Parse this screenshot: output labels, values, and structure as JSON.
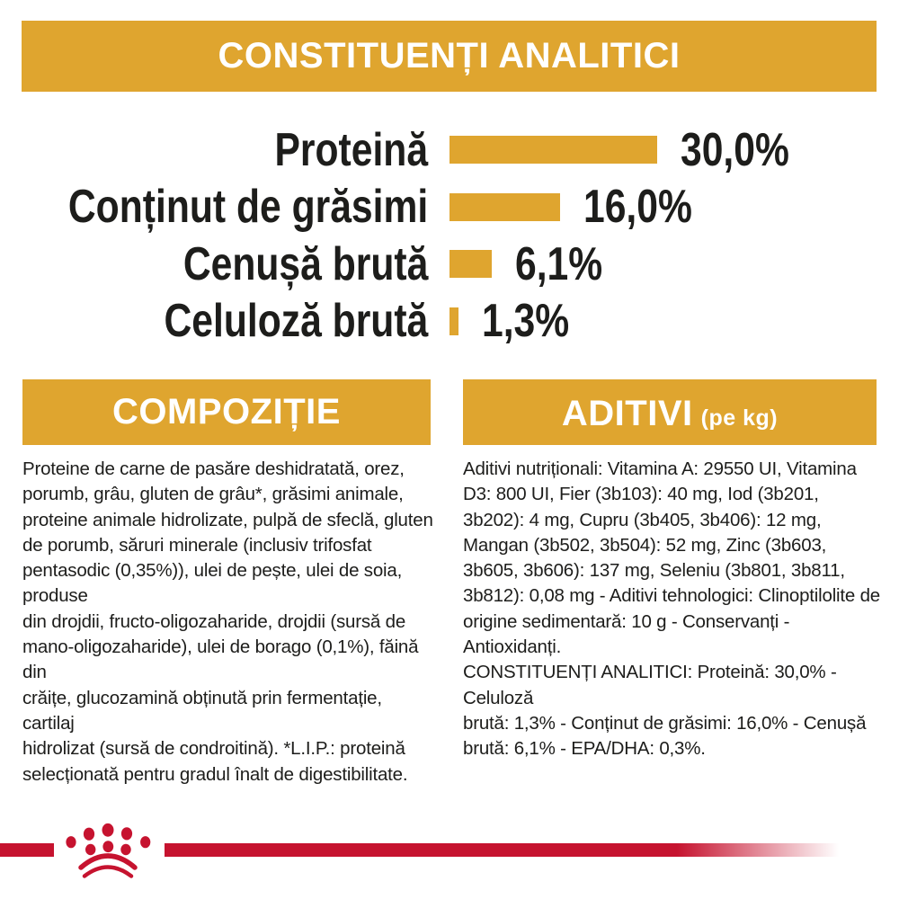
{
  "title_banner": "CONSTITUENȚI ANALITICI",
  "chart_data": {
    "type": "bar",
    "orientation": "horizontal",
    "title": "CONSTITUENȚI ANALITICI",
    "categories": [
      "Proteină",
      "Conținut de grăsimi",
      "Cenușă brută",
      "Celuloză brută"
    ],
    "values": [
      30.0,
      16.0,
      6.1,
      1.3
    ],
    "value_labels": [
      "30,0%",
      "16,0%",
      "6,1%",
      "1,3%"
    ],
    "unit": "%",
    "xlim": [
      0,
      30
    ],
    "grid": "off",
    "legend": "none",
    "bar_color": "#dfa52f"
  },
  "composition": {
    "heading": "COMPOZIȚIE",
    "lines": [
      "Proteine de carne de pasăre deshidratată, orez,",
      "porumb, grâu, gluten de grâu*, grăsimi animale,",
      "proteine animale hidrolizate, pulpă de sfeclă, gluten",
      "de porumb, săruri minerale (inclusiv trifosfat",
      "pentasodic (0,35%)), ulei de pește, ulei de soia, produse",
      "din drojdii, fructo-oligozaharide, drojdii (sursă de",
      "mano-oligozaharide), ulei de borago (0,1%), făină din",
      "crăițe, glucozamină obținută prin fermentație, cartilaj",
      "hidrolizat (sursă de condroitină). *L.I.P.: proteină",
      "selecționată pentru gradul înalt de digestibilitate."
    ]
  },
  "additives": {
    "heading": "ADITIVI",
    "heading_suffix": "(pe kg)",
    "lines": [
      "Aditivi nutriționali: Vitamina A: 29550 UI, Vitamina",
      "D3: 800 UI, Fier (3b103): 40 mg, Iod (3b201,",
      "3b202): 4 mg, Cupru (3b405, 3b406): 12 mg,",
      "Mangan (3b502, 3b504): 52 mg, Zinc (3b603,",
      "3b605, 3b606): 137 mg, Seleniu (3b801, 3b811,",
      "3b812): 0,08 mg - Aditivi tehnologici: Clinoptilolite de",
      "origine sedimentară: 10 g - Conservanți - Antioxidanți.",
      "CONSTITUENȚI ANALITICI: Proteină: 30,0% - Celuloză",
      "brută: 1,3% - Conținut de grăsimi: 16,0% - Cenușă",
      "brută: 6,1% - EPA/DHA: 0,3%."
    ]
  },
  "footer": {
    "brand_logo": "royal-canin-crown-paw-emblem",
    "band_color": "#c6132f"
  },
  "colors": {
    "gold": "#dfa52f",
    "red": "#c6132f",
    "text": "#1d1d1b"
  }
}
